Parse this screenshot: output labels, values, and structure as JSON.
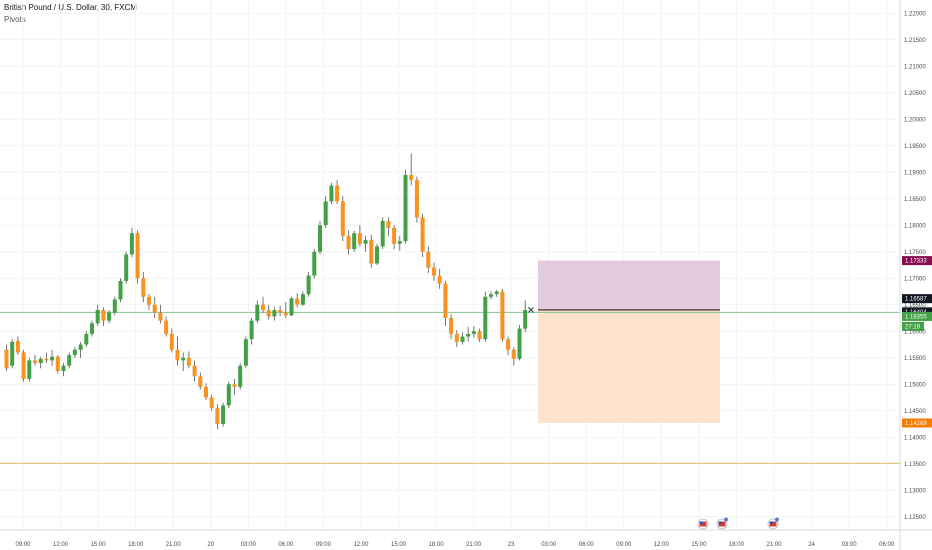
{
  "header": {
    "symbol_line": "British Pound / U.S. Dollar, 30, FXCM",
    "indicator": "Pivots"
  },
  "colors": {
    "up": "#43a047",
    "down": "#f7931e",
    "wick": "#555555",
    "grid": "#f0f3f6",
    "profit_zone": "#e2cbdd",
    "loss_zone": "#fde3cc",
    "price_line": "#83c58e",
    "pivot_line": "#e3b45f",
    "tag_target": "#880e4f",
    "tag_entry": "#131722",
    "tag_stop": "#f57c00",
    "tag_last": "#43a047"
  },
  "chart_data": {
    "type": "candlestick",
    "ylim": [
      1.1225,
      1.2225
    ],
    "y_ticks": [
      "1.22000",
      "1.21500",
      "1.21000",
      "1.20500",
      "1.20000",
      "1.19500",
      "1.19000",
      "1.18500",
      "1.18000",
      "1.17500",
      "1.17000",
      "1.16500",
      "1.16000",
      "1.15500",
      "1.15000",
      "1.14500",
      "1.14000",
      "1.13500",
      "1.13000",
      "1.12500"
    ],
    "x_ticks": [
      "09:00",
      "12:00",
      "15:00",
      "18:00",
      "21:00",
      "20",
      "03:00",
      "06:00",
      "09:00",
      "12:00",
      "15:00",
      "18:00",
      "21:00",
      "23",
      "03:00",
      "06:00",
      "09:00",
      "12:00",
      "15:00",
      "18:00",
      "21:00",
      "24",
      "03:00",
      "06:00"
    ],
    "candles": [
      [
        1.1565,
        1.1575,
        1.1525,
        1.153
      ],
      [
        1.1535,
        1.1585,
        1.153,
        1.158
      ],
      [
        1.1582,
        1.159,
        1.1555,
        1.156
      ],
      [
        1.156,
        1.1565,
        1.1505,
        1.151
      ],
      [
        1.151,
        1.155,
        1.1505,
        1.1545
      ],
      [
        1.1545,
        1.1555,
        1.1535,
        1.154
      ],
      [
        1.154,
        1.1552,
        1.153,
        1.1548
      ],
      [
        1.1548,
        1.156,
        1.154,
        1.1545
      ],
      [
        1.1545,
        1.1565,
        1.1535,
        1.1552
      ],
      [
        1.1552,
        1.1555,
        1.152,
        1.1525
      ],
      [
        1.1525,
        1.154,
        1.1515,
        1.1535
      ],
      [
        1.1535,
        1.156,
        1.153,
        1.1555
      ],
      [
        1.1555,
        1.157,
        1.155,
        1.1565
      ],
      [
        1.1565,
        1.158,
        1.155,
        1.1575
      ],
      [
        1.1575,
        1.16,
        1.157,
        1.1595
      ],
      [
        1.1595,
        1.162,
        1.159,
        1.1615
      ],
      [
        1.1615,
        1.165,
        1.161,
        1.164
      ],
      [
        1.164,
        1.1645,
        1.161,
        1.162
      ],
      [
        1.162,
        1.164,
        1.1615,
        1.1635
      ],
      [
        1.1635,
        1.1665,
        1.163,
        1.166
      ],
      [
        1.166,
        1.17,
        1.1655,
        1.1695
      ],
      [
        1.1695,
        1.175,
        1.169,
        1.1745
      ],
      [
        1.1745,
        1.1795,
        1.174,
        1.1785
      ],
      [
        1.1785,
        1.179,
        1.169,
        1.17
      ],
      [
        1.17,
        1.1712,
        1.1655,
        1.1665
      ],
      [
        1.1665,
        1.167,
        1.164,
        1.165
      ],
      [
        1.165,
        1.1665,
        1.1625,
        1.1635
      ],
      [
        1.1635,
        1.165,
        1.1615,
        1.162
      ],
      [
        1.162,
        1.1628,
        1.159,
        1.1595
      ],
      [
        1.1595,
        1.1605,
        1.156,
        1.1565
      ],
      [
        1.1565,
        1.159,
        1.1535,
        1.1545
      ],
      [
        1.1545,
        1.156,
        1.1525,
        1.155
      ],
      [
        1.155,
        1.1562,
        1.153,
        1.1535
      ],
      [
        1.1535,
        1.1545,
        1.1505,
        1.1515
      ],
      [
        1.1515,
        1.1522,
        1.149,
        1.1495
      ],
      [
        1.1495,
        1.1502,
        1.147,
        1.1475
      ],
      [
        1.1475,
        1.148,
        1.145,
        1.1455
      ],
      [
        1.1455,
        1.1462,
        1.1415,
        1.1425
      ],
      [
        1.1425,
        1.1465,
        1.142,
        1.146
      ],
      [
        1.146,
        1.1505,
        1.1455,
        1.15
      ],
      [
        1.15,
        1.151,
        1.148,
        1.1495
      ],
      [
        1.1495,
        1.154,
        1.149,
        1.1535
      ],
      [
        1.1535,
        1.159,
        1.153,
        1.1585
      ],
      [
        1.1585,
        1.1625,
        1.1575,
        1.162
      ],
      [
        1.162,
        1.1658,
        1.1615,
        1.165
      ],
      [
        1.165,
        1.1665,
        1.1635,
        1.164
      ],
      [
        1.164,
        1.165,
        1.1622,
        1.1628
      ],
      [
        1.1628,
        1.1645,
        1.162,
        1.164
      ],
      [
        1.164,
        1.1648,
        1.1628,
        1.1635
      ],
      [
        1.1635,
        1.1655,
        1.1625,
        1.163
      ],
      [
        1.163,
        1.1665,
        1.1628,
        1.1662
      ],
      [
        1.1662,
        1.1672,
        1.1645,
        1.165
      ],
      [
        1.165,
        1.1675,
        1.1648,
        1.167
      ],
      [
        1.167,
        1.1712,
        1.1665,
        1.1705
      ],
      [
        1.1705,
        1.1755,
        1.17,
        1.175
      ],
      [
        1.175,
        1.1808,
        1.1745,
        1.18
      ],
      [
        1.18,
        1.1855,
        1.1795,
        1.1845
      ],
      [
        1.1845,
        1.188,
        1.184,
        1.1875
      ],
      [
        1.1875,
        1.1885,
        1.184,
        1.1845
      ],
      [
        1.1845,
        1.1855,
        1.177,
        1.178
      ],
      [
        1.178,
        1.179,
        1.1745,
        1.1755
      ],
      [
        1.1755,
        1.179,
        1.175,
        1.1785
      ],
      [
        1.1785,
        1.18,
        1.176,
        1.1765
      ],
      [
        1.1765,
        1.178,
        1.175,
        1.1772
      ],
      [
        1.1772,
        1.1782,
        1.172,
        1.1728
      ],
      [
        1.1728,
        1.1765,
        1.1725,
        1.176
      ],
      [
        1.176,
        1.1815,
        1.1755,
        1.1808
      ],
      [
        1.1808,
        1.1815,
        1.178,
        1.1795
      ],
      [
        1.1795,
        1.18,
        1.1755,
        1.1765
      ],
      [
        1.1765,
        1.178,
        1.1752,
        1.177
      ],
      [
        1.177,
        1.1905,
        1.1765,
        1.1895
      ],
      [
        1.1895,
        1.1935,
        1.1875,
        1.1885
      ],
      [
        1.1885,
        1.1892,
        1.1805,
        1.1815
      ],
      [
        1.1815,
        1.1822,
        1.174,
        1.175
      ],
      [
        1.175,
        1.176,
        1.171,
        1.172
      ],
      [
        1.172,
        1.173,
        1.1695,
        1.1705
      ],
      [
        1.1705,
        1.1718,
        1.168,
        1.169
      ],
      [
        1.169,
        1.1695,
        1.161,
        1.1625
      ],
      [
        1.1625,
        1.1632,
        1.1585,
        1.1595
      ],
      [
        1.1595,
        1.1602,
        1.157,
        1.158
      ],
      [
        1.158,
        1.1598,
        1.1575,
        1.159
      ],
      [
        1.159,
        1.1608,
        1.158,
        1.1595
      ],
      [
        1.1595,
        1.161,
        1.1588,
        1.16
      ],
      [
        1.16,
        1.1605,
        1.158,
        1.1585
      ],
      [
        1.1585,
        1.1675,
        1.158,
        1.1665
      ],
      [
        1.1665,
        1.1675,
        1.166,
        1.167
      ],
      [
        1.167,
        1.1678,
        1.1665,
        1.1675
      ],
      [
        1.1675,
        1.168,
        1.158,
        1.1585
      ],
      [
        1.1585,
        1.159,
        1.1555,
        1.1565
      ],
      [
        1.1565,
        1.157,
        1.1535,
        1.1548
      ],
      [
        1.1548,
        1.1612,
        1.1545,
        1.1605
      ],
      [
        1.1605,
        1.1658,
        1.1598,
        1.164
      ]
    ],
    "position": {
      "target_label": "1.17333",
      "target": 1.17333,
      "entry_label": "1.16404",
      "entry": 1.16404,
      "stop_label": "1.14269",
      "stop": 1.14269
    },
    "current_price_label": "1.16587",
    "current_price": 1.16587,
    "last_price_label": "1.16355",
    "last_price": 1.16355,
    "countdown": "27:19",
    "pivot_level": 1.1351
  }
}
